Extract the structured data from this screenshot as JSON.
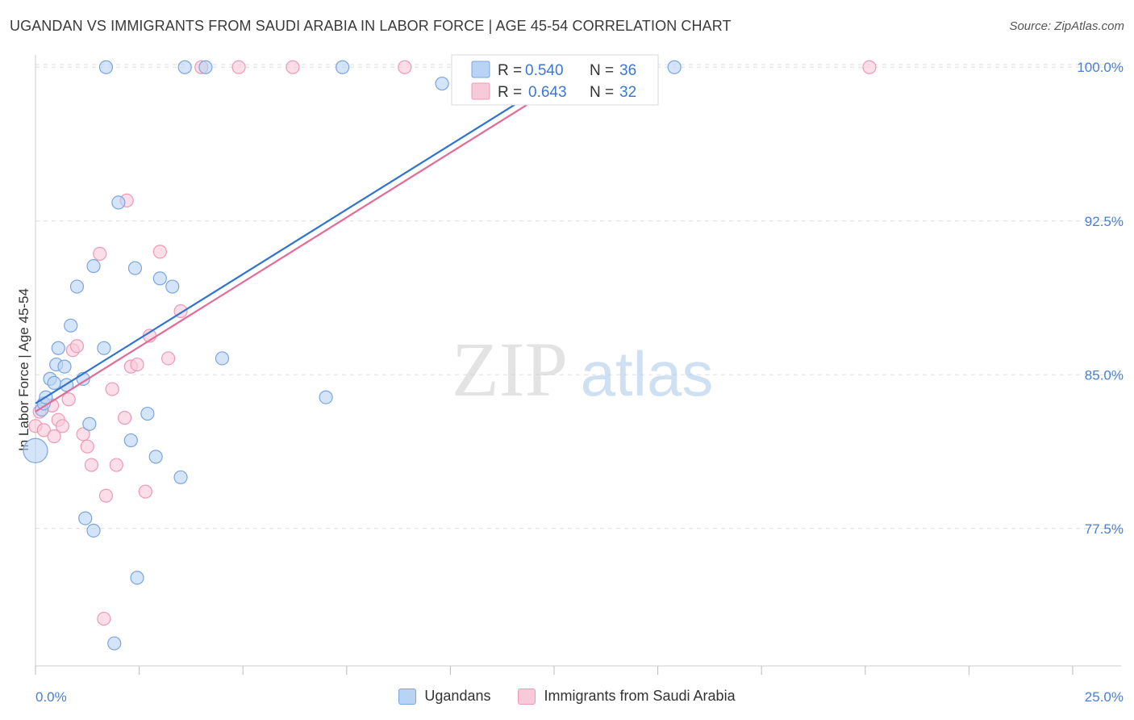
{
  "title": "UGANDAN VS IMMIGRANTS FROM SAUDI ARABIA IN LABOR FORCE | AGE 45-54 CORRELATION CHART",
  "source": "Source: ZipAtlas.com",
  "watermark": {
    "zip": "ZIP",
    "atlas": "atlas"
  },
  "colors": {
    "blue_fill": "#b9d3f5",
    "blue_stroke": "#7aa6e0",
    "blue_line": "#2f74cf",
    "pink_fill": "#f8c9d8",
    "pink_stroke": "#ee9ab4",
    "pink_line": "#e36b96",
    "tick_text": "#4a7fd0",
    "grid": "#dddddd"
  },
  "legend": {
    "r_label": "R =",
    "n_label": "N =",
    "series": [
      {
        "r": "0.540",
        "n": "36"
      },
      {
        "r": "0.643",
        "n": "32"
      }
    ]
  },
  "chart_data": {
    "type": "scatter",
    "title": "UGANDAN VS IMMIGRANTS FROM SAUDI ARABIA IN LABOR FORCE | AGE 45-54 CORRELATION CHART",
    "xlabel": "",
    "ylabel": "In Labor Force | Age 45-54",
    "xlim": [
      0,
      25
    ],
    "ylim": [
      70.8,
      100.6
    ],
    "x_tick_labels": [
      "0.0%",
      "25.0%"
    ],
    "y_ticks": [
      77.5,
      85.0,
      92.5,
      100.0
    ],
    "y_tick_labels": [
      "77.5%",
      "85.0%",
      "92.5%",
      "100.0%"
    ],
    "grid": true,
    "legend_position": "top-center",
    "series": [
      {
        "name": "Ugandans",
        "points": [
          [
            0.0,
            81.3
          ],
          [
            0.15,
            83.3
          ],
          [
            0.2,
            83.6
          ],
          [
            0.25,
            83.9
          ],
          [
            0.35,
            84.8
          ],
          [
            0.45,
            84.6
          ],
          [
            0.5,
            85.5
          ],
          [
            0.55,
            86.3
          ],
          [
            0.7,
            85.4
          ],
          [
            0.75,
            84.5
          ],
          [
            0.85,
            87.4
          ],
          [
            1.0,
            89.3
          ],
          [
            1.15,
            84.8
          ],
          [
            1.2,
            78.0
          ],
          [
            1.3,
            82.6
          ],
          [
            1.4,
            77.4
          ],
          [
            1.4,
            90.3
          ],
          [
            1.65,
            86.3
          ],
          [
            1.7,
            100.0
          ],
          [
            1.9,
            71.9
          ],
          [
            2.0,
            93.4
          ],
          [
            2.3,
            81.8
          ],
          [
            2.4,
            90.2
          ],
          [
            2.45,
            75.1
          ],
          [
            2.7,
            83.1
          ],
          [
            2.9,
            81.0
          ],
          [
            3.0,
            89.7
          ],
          [
            3.3,
            89.3
          ],
          [
            3.5,
            80.0
          ],
          [
            3.6,
            100.0
          ],
          [
            4.1,
            100.0
          ],
          [
            4.5,
            85.8
          ],
          [
            7.0,
            83.9
          ],
          [
            7.4,
            100.0
          ],
          [
            9.8,
            99.2
          ],
          [
            15.4,
            100.0
          ]
        ],
        "trend": {
          "x": [
            0.0,
            13.0
          ],
          "y": [
            83.6,
            100.0
          ]
        }
      },
      {
        "name": "Immigrants from Saudi Arabia",
        "points": [
          [
            0.0,
            82.5
          ],
          [
            0.2,
            82.3
          ],
          [
            0.4,
            83.5
          ],
          [
            0.45,
            82.0
          ],
          [
            0.55,
            82.8
          ],
          [
            0.65,
            82.5
          ],
          [
            0.8,
            83.8
          ],
          [
            0.9,
            86.2
          ],
          [
            1.0,
            86.4
          ],
          [
            1.15,
            82.1
          ],
          [
            1.25,
            81.5
          ],
          [
            1.35,
            80.6
          ],
          [
            1.55,
            90.9
          ],
          [
            1.65,
            73.1
          ],
          [
            1.7,
            79.1
          ],
          [
            1.85,
            84.3
          ],
          [
            1.95,
            80.6
          ],
          [
            2.15,
            82.9
          ],
          [
            2.2,
            93.5
          ],
          [
            2.3,
            85.4
          ],
          [
            2.45,
            85.5
          ],
          [
            2.65,
            79.3
          ],
          [
            2.75,
            86.9
          ],
          [
            3.0,
            91.0
          ],
          [
            3.2,
            85.8
          ],
          [
            3.5,
            88.1
          ],
          [
            4.0,
            100.0
          ],
          [
            4.9,
            100.0
          ],
          [
            6.2,
            100.0
          ],
          [
            8.9,
            100.0
          ],
          [
            20.1,
            100.0
          ],
          [
            0.1,
            83.2
          ]
        ],
        "trend": {
          "x": [
            0.0,
            13.3
          ],
          "y": [
            83.2,
            100.0
          ]
        }
      }
    ]
  }
}
